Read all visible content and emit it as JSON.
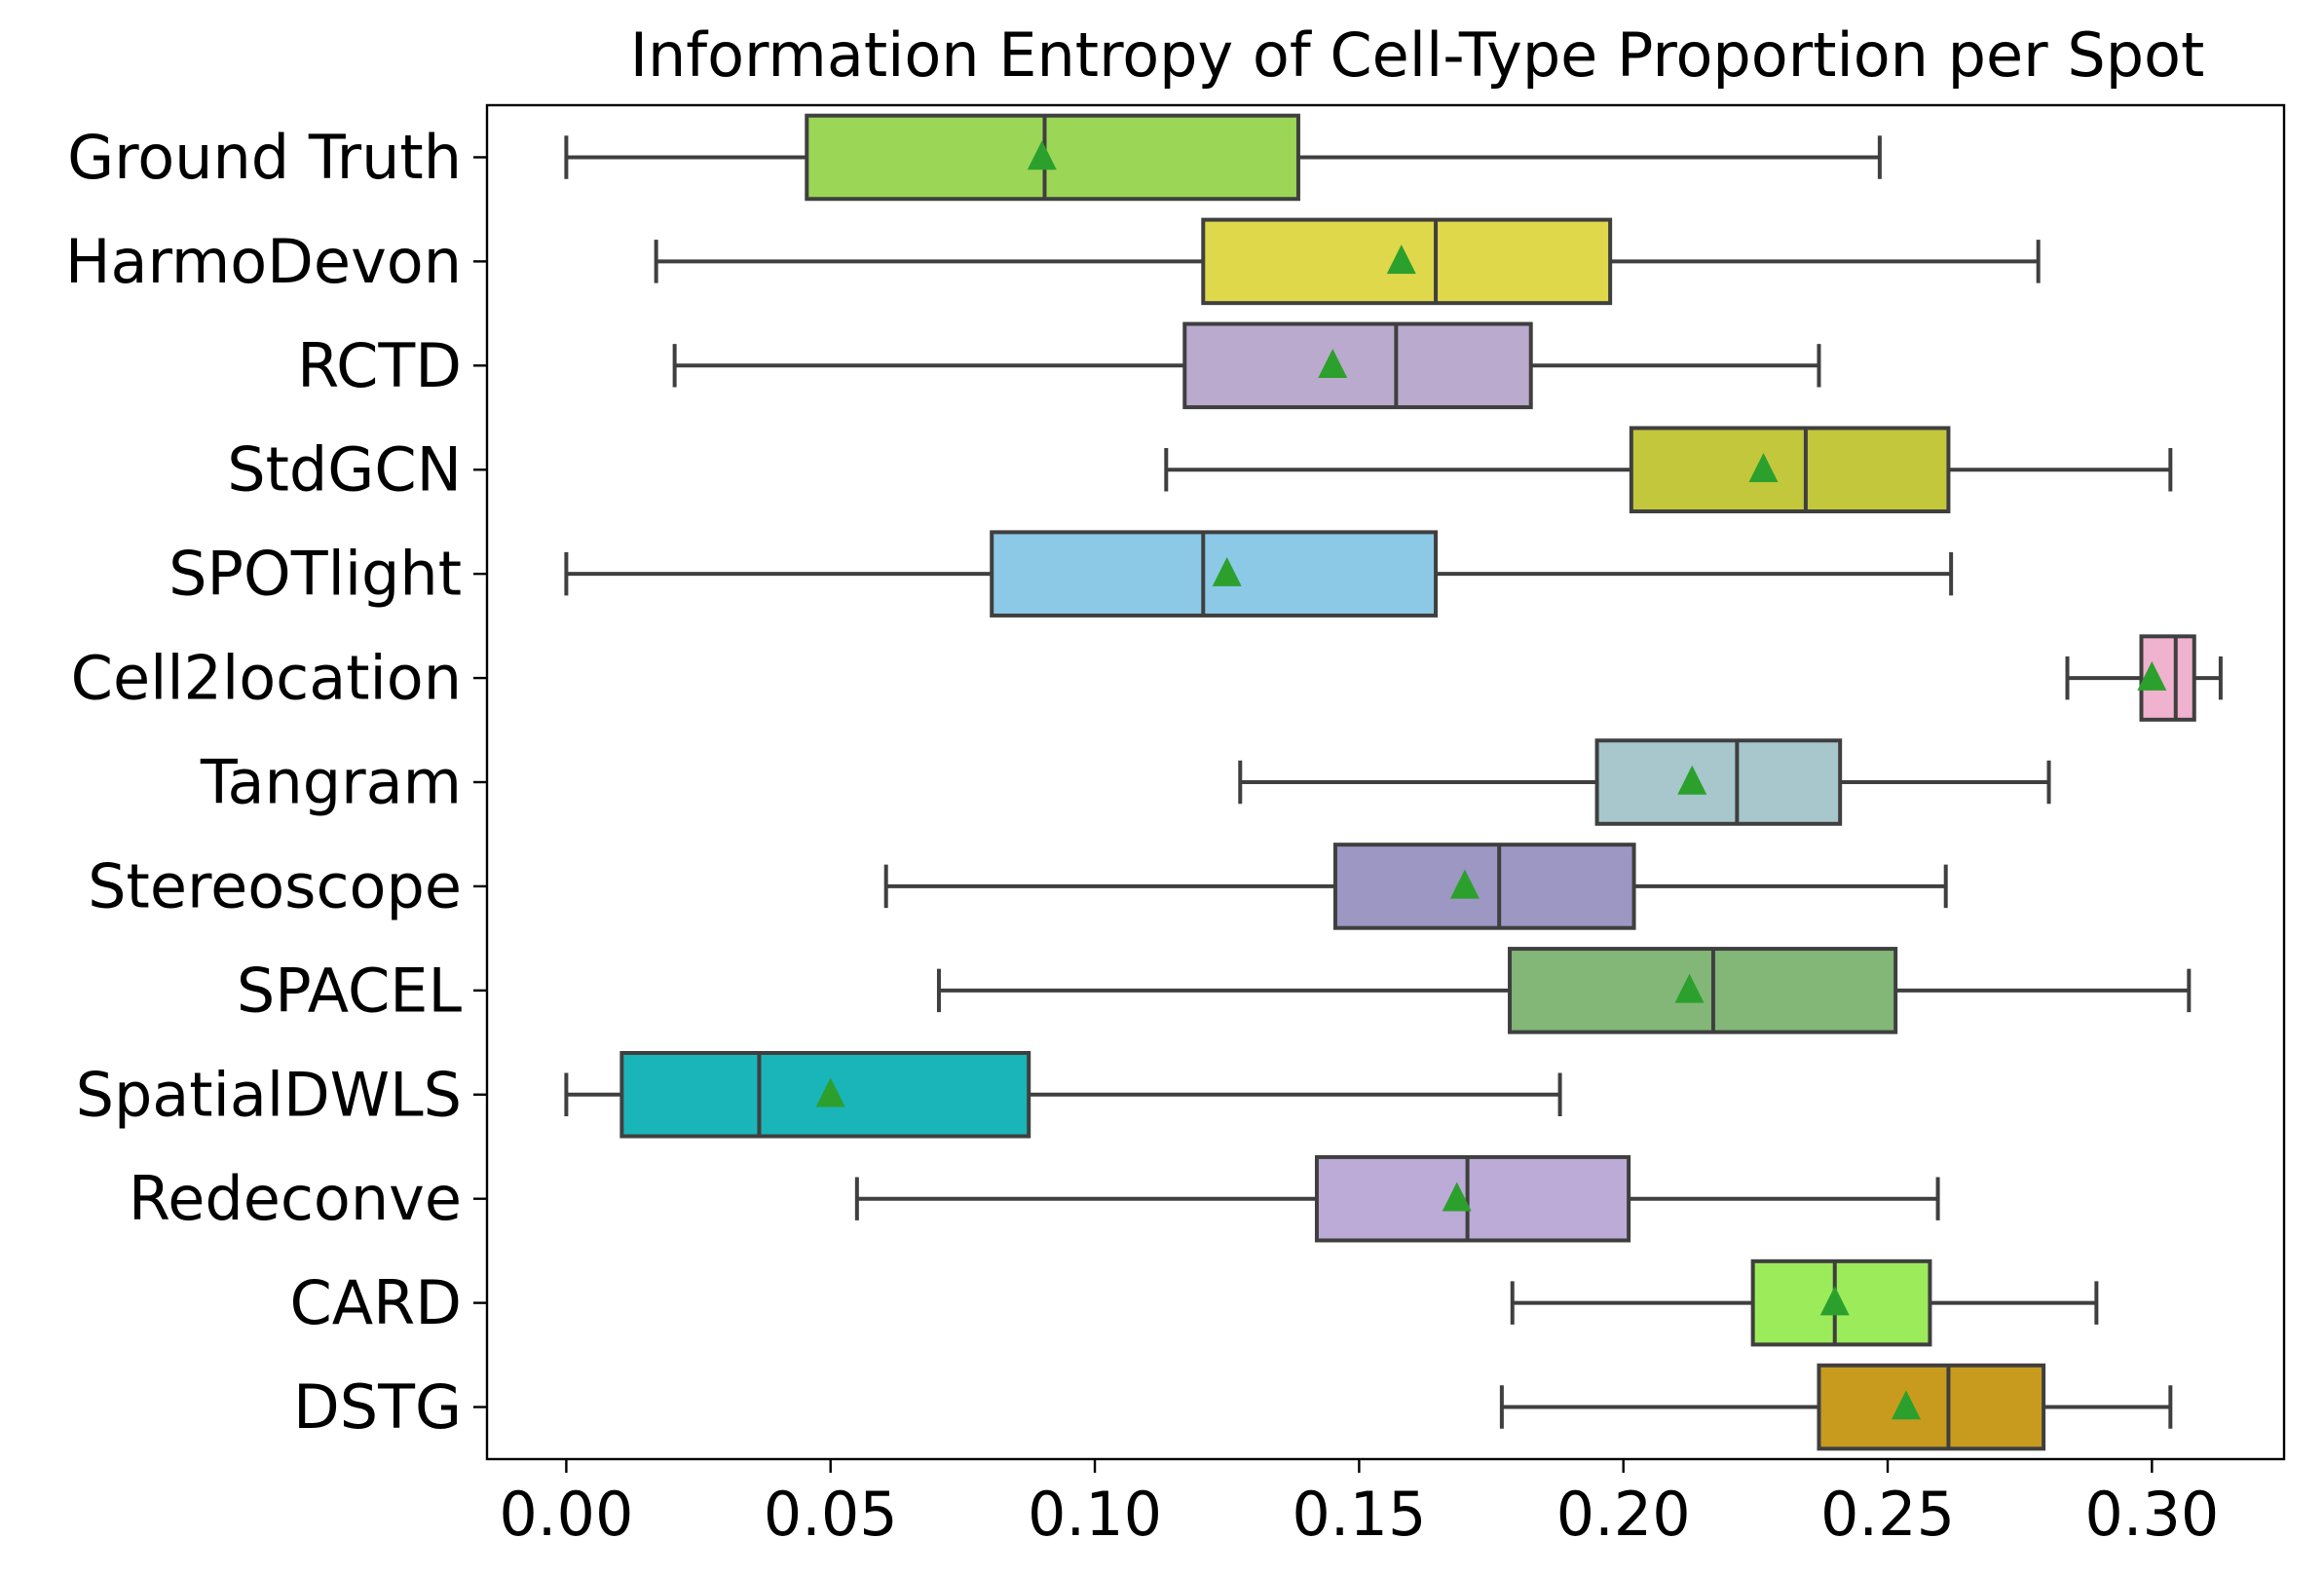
{
  "chart_data": {
    "type": "boxplot",
    "orientation": "horizontal",
    "title": "Information Entropy of Cell-Type Proportion per Spot",
    "xlabel": "",
    "ylabel": "",
    "xlim": [
      -0.015,
      0.325
    ],
    "xticks": [
      "0.00",
      "0.05",
      "0.10",
      "0.15",
      "0.20",
      "0.25",
      "0.30"
    ],
    "xtick_values": [
      0.0,
      0.05,
      0.1,
      0.15,
      0.2,
      0.25,
      0.3
    ],
    "grid": false,
    "line_color": "#3f3f3f",
    "mean_marker_color": "#2ca02c",
    "series": [
      {
        "name": "Ground Truth",
        "color": "#9cd656",
        "whisker_low": 0.0,
        "q1": 0.0455,
        "median": 0.0905,
        "q3": 0.1385,
        "whisker_high": 0.2485,
        "mean": 0.09
      },
      {
        "name": "HarmoDevon",
        "color": "#e0d84b",
        "whisker_low": 0.017,
        "q1": 0.1205,
        "median": 0.1645,
        "q3": 0.1975,
        "whisker_high": 0.2785,
        "mean": 0.158
      },
      {
        "name": "RCTD",
        "color": "#baaacd",
        "whisker_low": 0.0205,
        "q1": 0.117,
        "median": 0.157,
        "q3": 0.1825,
        "whisker_high": 0.237,
        "mean": 0.145
      },
      {
        "name": "StdGCN",
        "color": "#c3c73b",
        "whisker_low": 0.1135,
        "q1": 0.2015,
        "median": 0.2345,
        "q3": 0.2615,
        "whisker_high": 0.3035,
        "mean": 0.2265
      },
      {
        "name": "SPOTlight",
        "color": "#8cc9e6",
        "whisker_low": 0.0,
        "q1": 0.0805,
        "median": 0.1205,
        "q3": 0.1645,
        "whisker_high": 0.262,
        "mean": 0.125
      },
      {
        "name": "Cell2location",
        "color": "#efb2cf",
        "whisker_low": 0.284,
        "q1": 0.298,
        "median": 0.3045,
        "q3": 0.308,
        "whisker_high": 0.313,
        "mean": 0.3
      },
      {
        "name": "Tangram",
        "color": "#a7c7cc",
        "whisker_low": 0.1275,
        "q1": 0.195,
        "median": 0.2215,
        "q3": 0.241,
        "whisker_high": 0.2805,
        "mean": 0.213
      },
      {
        "name": "Stereoscope",
        "color": "#9c97c3",
        "whisker_low": 0.0605,
        "q1": 0.1455,
        "median": 0.1765,
        "q3": 0.202,
        "whisker_high": 0.261,
        "mean": 0.17
      },
      {
        "name": "SPACEL",
        "color": "#83b778",
        "whisker_low": 0.0705,
        "q1": 0.1785,
        "median": 0.217,
        "q3": 0.2515,
        "whisker_high": 0.307,
        "mean": 0.2125
      },
      {
        "name": "SpatialDWLS",
        "color": "#1ab5b9",
        "whisker_low": 0.0,
        "q1": 0.0105,
        "median": 0.0365,
        "q3": 0.0875,
        "whisker_high": 0.188,
        "mean": 0.05
      },
      {
        "name": "Redeconve",
        "color": "#bcabd6",
        "whisker_low": 0.055,
        "q1": 0.142,
        "median": 0.1705,
        "q3": 0.201,
        "whisker_high": 0.2595,
        "mean": 0.1685
      },
      {
        "name": "CARD",
        "color": "#9ceb5a",
        "whisker_low": 0.179,
        "q1": 0.2245,
        "median": 0.24,
        "q3": 0.258,
        "whisker_high": 0.2895,
        "mean": 0.24
      },
      {
        "name": "DSTG",
        "color": "#c89b1f",
        "whisker_low": 0.177,
        "q1": 0.237,
        "median": 0.2615,
        "q3": 0.2795,
        "whisker_high": 0.3035,
        "mean": 0.2535
      }
    ]
  }
}
